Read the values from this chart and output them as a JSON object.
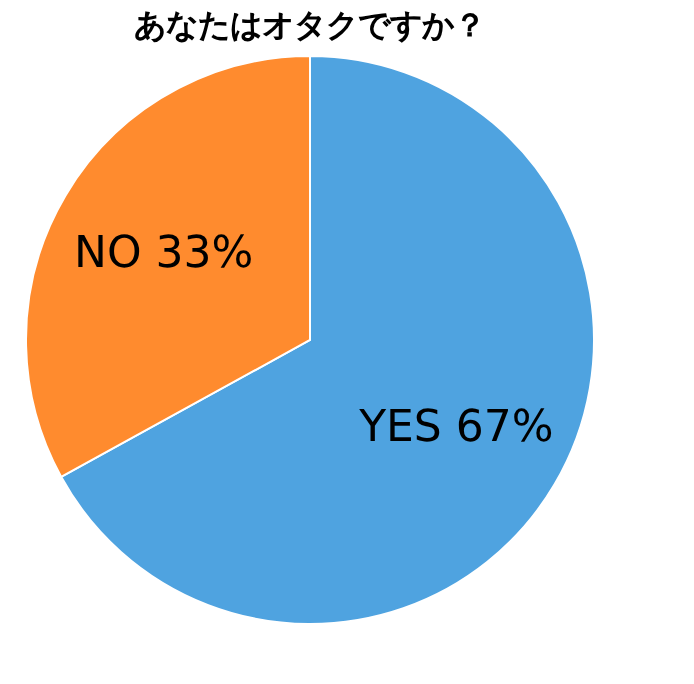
{
  "chart_data": {
    "type": "pie",
    "title": "あなたはオタクですか？",
    "categories": [
      "YES",
      "NO"
    ],
    "values": [
      67,
      33
    ],
    "colors": [
      "#4fa3e0",
      "#ff8b2e"
    ],
    "value_labels": [
      "67%",
      "33%"
    ]
  }
}
